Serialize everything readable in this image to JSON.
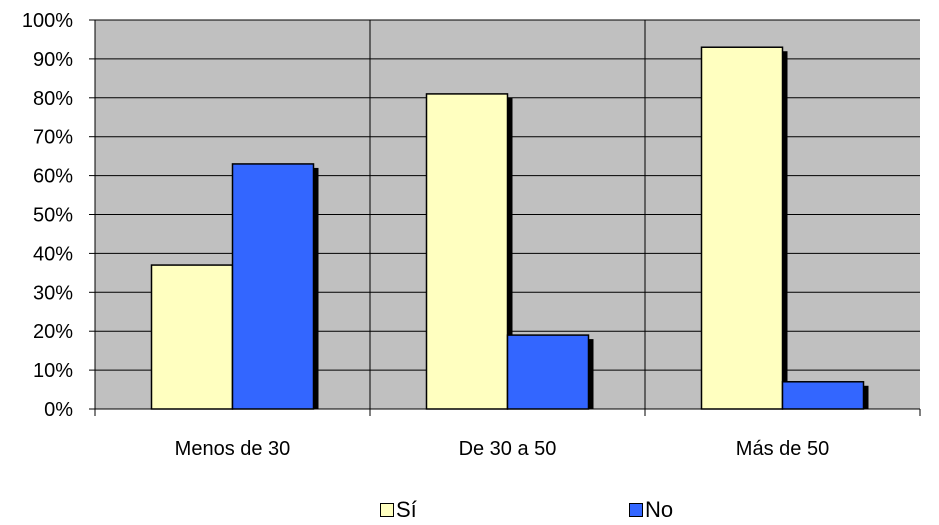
{
  "chart_data": {
    "type": "bar",
    "categories": [
      "Menos de 30",
      "De 30 a 50",
      "Más de 50"
    ],
    "series": [
      {
        "name": "Sí",
        "color": "#ffffc0",
        "values": [
          37,
          81,
          93
        ]
      },
      {
        "name": "No",
        "color": "#3366ff",
        "values": [
          63,
          19,
          7
        ]
      }
    ],
    "y_ticks": [
      "0%",
      "10%",
      "20%",
      "30%",
      "40%",
      "50%",
      "60%",
      "70%",
      "80%",
      "90%",
      "100%"
    ],
    "ylim": [
      0,
      100
    ],
    "plot_background": "#c0c0c0",
    "grid": true,
    "legend_position": "bottom"
  }
}
